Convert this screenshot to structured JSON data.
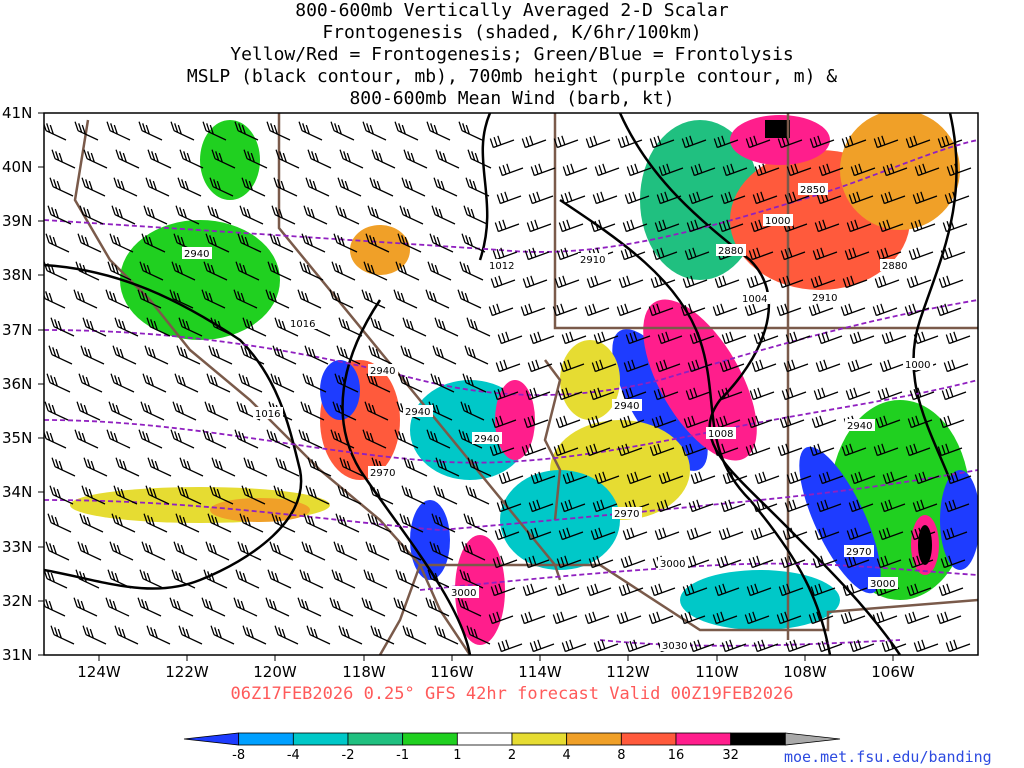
{
  "title": {
    "line1": "800-600mb Vertically Averaged 2-D Scalar",
    "line2": "Frontogenesis (shaded, K/6hr/100km)",
    "line3": "Yellow/Red = Frontogenesis;  Green/Blue = Frontolysis",
    "line4": "MSLP (black contour, mb), 700mb height (purple contour, m) &",
    "line5": "800-600mb Mean Wind (barb, kt)"
  },
  "axes": {
    "lat_labels": [
      "41N",
      "40N",
      "39N",
      "38N",
      "37N",
      "36N",
      "35N",
      "34N",
      "33N",
      "32N",
      "31N"
    ],
    "lon_labels": [
      "124W",
      "122W",
      "120W",
      "118W",
      "116W",
      "114W",
      "112W",
      "110W",
      "108W",
      "106W"
    ]
  },
  "contour_labels": {
    "mslp": [
      "1012",
      "1016",
      "1016",
      "1000",
      "1004",
      "1008",
      "1000",
      "1000"
    ],
    "height": [
      "2940",
      "2910",
      "2880",
      "2850",
      "2910",
      "2880",
      "2940",
      "2940",
      "2940",
      "2970",
      "2940",
      "2970",
      "3000",
      "3000",
      "2970",
      "3000",
      "3030"
    ]
  },
  "colorbar": {
    "labels": [
      "-8",
      "-4",
      "-2",
      "-1",
      "1",
      "2",
      "4",
      "8",
      "16",
      "32"
    ],
    "colors": [
      "#1e3cff",
      "#00a0ff",
      "#00c8c8",
      "#20c080",
      "#20d020",
      "#ffffff",
      "#e6dc32",
      "#f0a028",
      "#ff5a3c",
      "#ff1e8c",
      "#000000",
      "#aaaaaa"
    ]
  },
  "footer": "06Z17FEB2026 0.25° GFS 42hr forecast Valid 00Z19FEB2026",
  "credit": "moe.met.fsu.edu/banding"
}
